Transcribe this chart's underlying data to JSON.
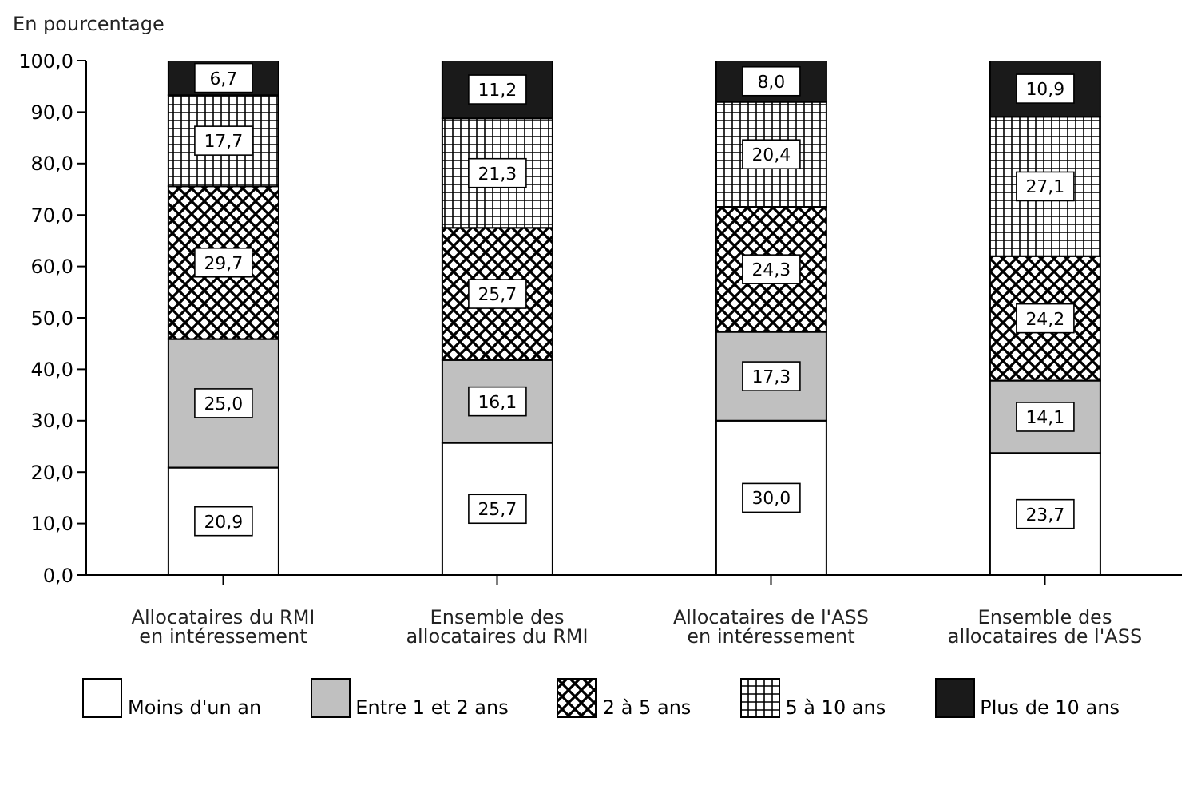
{
  "chart_data": {
    "type": "bar",
    "stacked": true,
    "ylabel": "En pourcentage",
    "categories": [
      "Allocataires du RMI en intéressement",
      "Ensemble des allocataires du RMI",
      "Allocataires de l'ASS en intéressement",
      "Ensemble des allocataires de l'ASS"
    ],
    "series": [
      {
        "name": "Moins d'un an",
        "color": "#ffffff",
        "values": [
          20.9,
          25.7,
          30.0,
          23.7
        ],
        "value_labels": [
          "20,9",
          "25,7",
          "30,0",
          "23,7"
        ]
      },
      {
        "name": "Entre 1 et 2 ans",
        "color": "#c0c0c0",
        "values": [
          25.0,
          16.1,
          17.3,
          14.1
        ],
        "value_labels": [
          "25,0",
          "16,1",
          "17,3",
          "14,1"
        ]
      },
      {
        "name": "2 à 5 ans",
        "color": "#000000",
        "values": [
          29.7,
          25.7,
          24.3,
          24.2
        ],
        "value_labels": [
          "29,7",
          "25,7",
          "24,3",
          "24,2"
        ]
      },
      {
        "name": "5 à 10 ans",
        "color": "#000000",
        "values": [
          17.7,
          21.3,
          20.4,
          27.1
        ],
        "value_labels": [
          "17,7",
          "21,3",
          "20,4",
          "27,1"
        ]
      },
      {
        "name": "Plus de 10 ans",
        "color": "#1a1a1a",
        "values": [
          6.7,
          11.2,
          8.0,
          10.9
        ],
        "value_labels": [
          "6,7",
          "11,2",
          "8,0",
          "10,9"
        ]
      }
    ],
    "ylim": [
      0,
      100
    ],
    "yticks": [
      {
        "value": 0,
        "label": "0,0"
      },
      {
        "value": 10,
        "label": "10,0"
      },
      {
        "value": 20,
        "label": "20,0"
      },
      {
        "value": 30,
        "label": "30,0"
      },
      {
        "value": 40,
        "label": "40,0"
      },
      {
        "value": 50,
        "label": "50,0"
      },
      {
        "value": 60,
        "label": "60,0"
      },
      {
        "value": 70,
        "label": "70,0"
      },
      {
        "value": 80,
        "label": "80,0"
      },
      {
        "value": 90,
        "label": "90,0"
      },
      {
        "value": 100,
        "label": "100,0"
      }
    ],
    "legend": "bottom"
  }
}
